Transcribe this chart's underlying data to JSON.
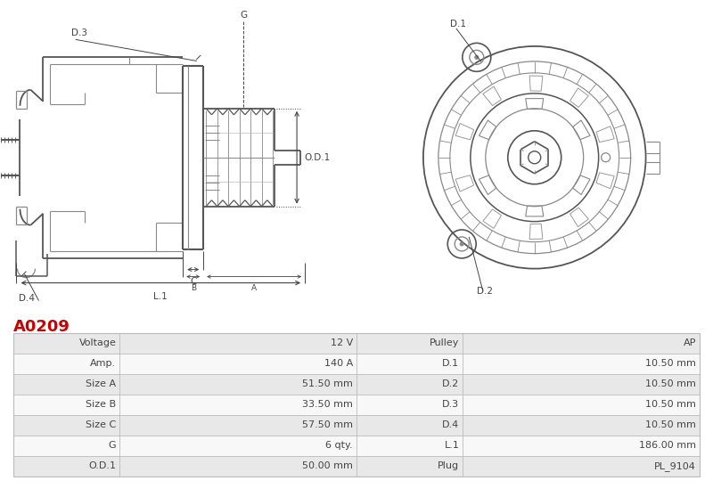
{
  "title": "A0209",
  "title_color": "#cc0000",
  "bg_color": "#ffffff",
  "table_rows": [
    [
      "Voltage",
      "12 V",
      "Pulley",
      "AP"
    ],
    [
      "Amp.",
      "140 A",
      "D.1",
      "10.50 mm"
    ],
    [
      "Size A",
      "51.50 mm",
      "D.2",
      "10.50 mm"
    ],
    [
      "Size B",
      "33.50 mm",
      "D.3",
      "10.50 mm"
    ],
    [
      "Size C",
      "57.50 mm",
      "D.4",
      "10.50 mm"
    ],
    [
      "G",
      "6 qty.",
      "L.1",
      "186.00 mm"
    ],
    [
      "O.D.1",
      "50.00 mm",
      "Plug",
      "PL_9104"
    ]
  ],
  "line_color": "#555555",
  "dim_color": "#444444",
  "light_line": "#888888",
  "table_row_bg_even": "#e8e8e8",
  "table_row_bg_odd": "#f8f8f8",
  "table_border_color": "#bbbbbb",
  "table_text_color": "#444444"
}
